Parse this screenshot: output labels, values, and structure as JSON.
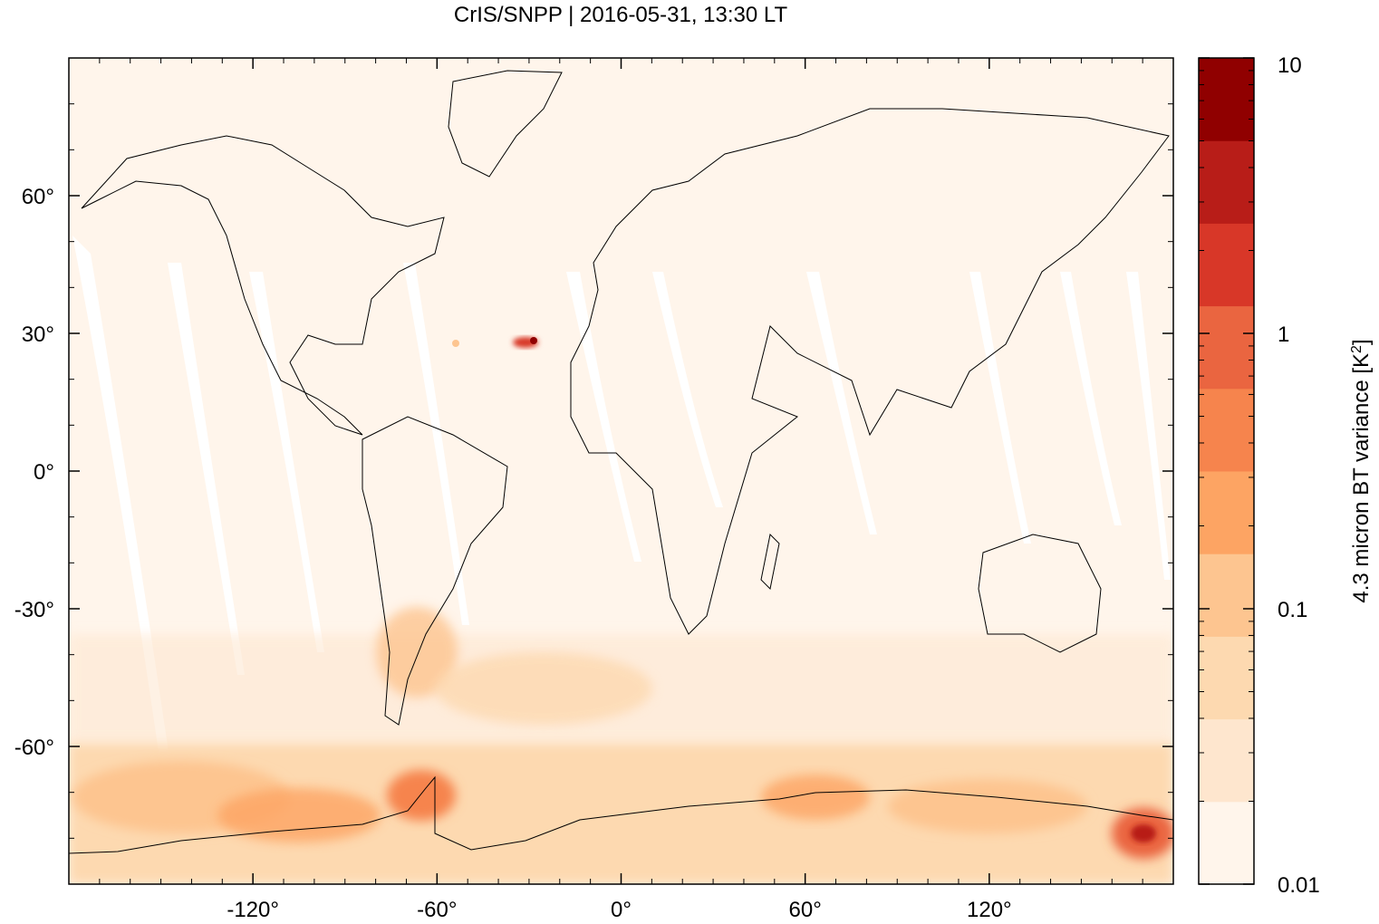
{
  "title": "CrIS/SNPP | 2016-05-31, 13:30 LT",
  "map": {
    "lon_range": [
      -180,
      180
    ],
    "lat_range": [
      -90,
      90
    ],
    "x_ticks": [
      {
        "value": -120,
        "label": "-120°"
      },
      {
        "value": -60,
        "label": "-60°"
      },
      {
        "value": 0,
        "label": "0°"
      },
      {
        "value": 60,
        "label": "60°"
      },
      {
        "value": 120,
        "label": "120°"
      }
    ],
    "y_ticks": [
      {
        "value": 60,
        "label": "60°"
      },
      {
        "value": 30,
        "label": "30°"
      },
      {
        "value": 0,
        "label": "0°"
      },
      {
        "value": -30,
        "label": "-30°"
      },
      {
        "value": -60,
        "label": "-60°"
      }
    ],
    "background_color": "#fff5eb"
  },
  "colorbar": {
    "label": "4.3 micron BT variance [K²]",
    "scale": "log",
    "range": [
      0.01,
      10
    ],
    "tick_labels": [
      {
        "value": 10,
        "label": "10"
      },
      {
        "value": 1,
        "label": "1"
      },
      {
        "value": 0.1,
        "label": "0.1"
      },
      {
        "value": 0.01,
        "label": "0.01"
      }
    ],
    "colors": [
      "#fff5eb",
      "#fee6ce",
      "#fdd9b0",
      "#fdc590",
      "#fda463",
      "#f6844d",
      "#ea6540",
      "#d83728",
      "#b81d18",
      "#900000"
    ]
  }
}
